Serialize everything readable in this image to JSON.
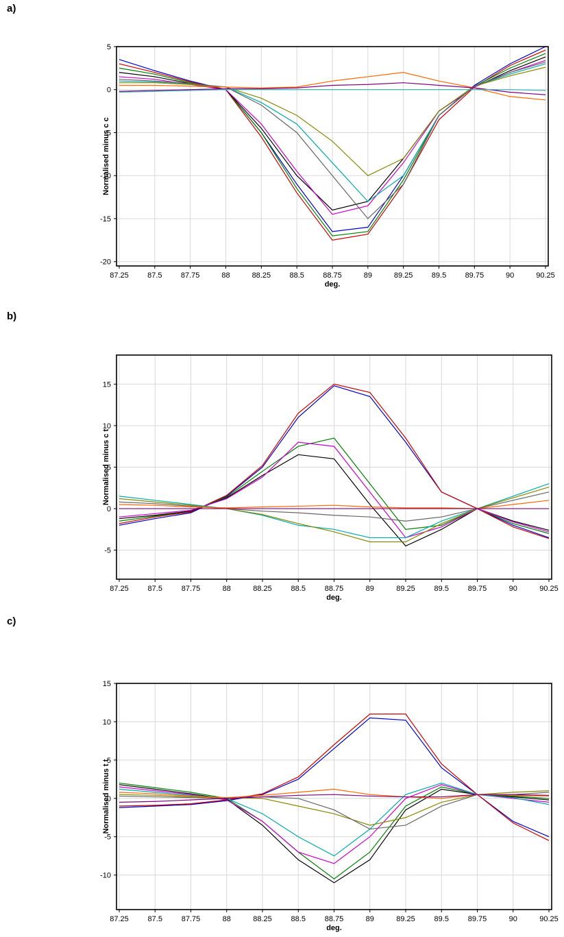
{
  "panels": [
    {
      "label": "a)"
    },
    {
      "label": "b)"
    },
    {
      "label": "c)"
    }
  ],
  "series_colors": [
    "#0000cc",
    "#cc0000",
    "#008000",
    "#000000",
    "#cc00cc",
    "#00aaaa",
    "#888800",
    "#666666",
    "#ff6600",
    "#7f007f",
    "#3cb4b4",
    "#b04040",
    "#404080",
    "#a0a000",
    "#d060d0"
  ],
  "chart_data": [
    {
      "type": "line",
      "xlabel": "deg.",
      "ylabel": "Normalised minus c c",
      "xlim": [
        87.25,
        90.25
      ],
      "ylim": [
        -20.5,
        5
      ],
      "x_ticks": [
        "87.25",
        "87.5",
        "87.75",
        "88",
        "88.25",
        "88.5",
        "88.75",
        "89",
        "89.25",
        "89.5",
        "89.75",
        "90",
        "90.25"
      ],
      "y_ticks": [
        "5",
        "0",
        "-5",
        "-10",
        "-15",
        "-20"
      ],
      "grid": true,
      "x": [
        87.25,
        87.5,
        87.75,
        88,
        88.25,
        88.5,
        88.75,
        89,
        89.25,
        89.5,
        89.75,
        90,
        90.25
      ],
      "series": [
        {
          "values": [
            3.5,
            2.2,
            1.0,
            0,
            -5,
            -11,
            -16.5,
            -16,
            -10,
            -3,
            0.5,
            3,
            5
          ]
        },
        {
          "values": [
            3.0,
            2.0,
            0.9,
            0,
            -5.5,
            -12,
            -17.5,
            -16.8,
            -11,
            -3.5,
            0.3,
            2.8,
            4.6
          ]
        },
        {
          "values": [
            2.5,
            1.8,
            0.8,
            0,
            -5,
            -11.5,
            -17,
            -16.5,
            -10.5,
            -3,
            0.4,
            2.5,
            4.2
          ]
        },
        {
          "values": [
            2.0,
            1.5,
            0.7,
            0,
            -4.5,
            -10,
            -14,
            -13,
            -8,
            -2.5,
            0.3,
            2.2,
            3.8
          ]
        },
        {
          "values": [
            1.5,
            1.2,
            0.6,
            0,
            -4,
            -9.5,
            -14.5,
            -13.5,
            -8.5,
            -2.5,
            0.3,
            2.0,
            3.4
          ]
        },
        {
          "values": [
            1.0,
            0.9,
            0.6,
            0.3,
            -1.5,
            -4,
            -8.5,
            -13,
            -10,
            -3,
            0.4,
            1.8,
            3.0
          ]
        },
        {
          "values": [
            0.8,
            0.8,
            0.6,
            0.3,
            -1,
            -3,
            -6,
            -10,
            -8,
            -2.5,
            0.4,
            1.6,
            2.6
          ]
        },
        {
          "values": [
            1.2,
            1.0,
            0.7,
            0.3,
            -1.8,
            -5,
            -10,
            -15,
            -11,
            -3,
            0.4,
            2.0,
            3.2
          ]
        },
        {
          "values": [
            0.5,
            0.5,
            0.4,
            0.3,
            0.2,
            0.3,
            1.0,
            1.5,
            2.0,
            1.0,
            0.2,
            -0.8,
            -1.2
          ]
        },
        {
          "values": [
            -0.2,
            -0.1,
            0,
            0.1,
            0.1,
            0.2,
            0.5,
            0.6,
            0.8,
            0.5,
            0.2,
            -0.3,
            -0.6
          ]
        },
        {
          "values": [
            -0.3,
            -0.2,
            -0.1,
            0,
            0,
            0,
            0,
            0,
            0,
            0,
            0,
            0,
            -0.1
          ]
        }
      ]
    },
    {
      "type": "line",
      "xlabel": "deg.",
      "ylabel": "Normalised minus c t",
      "xlim": [
        87.25,
        90.25
      ],
      "ylim": [
        -8.5,
        18.5
      ],
      "x_ticks": [
        "87.25",
        "87.5",
        "87.75",
        "88",
        "88.25",
        "88.5",
        "88.75",
        "89",
        "89.25",
        "89.5",
        "89.75",
        "90",
        "90.25"
      ],
      "y_ticks": [
        "15",
        "10",
        "5",
        "0",
        "-5"
      ],
      "grid": true,
      "x": [
        87.25,
        87.5,
        87.75,
        88,
        88.25,
        88.5,
        88.75,
        89,
        89.25,
        89.5,
        89.75,
        90,
        90.25
      ],
      "series": [
        {
          "values": [
            -2,
            -1.2,
            -0.5,
            1.5,
            5,
            11,
            14.8,
            13.5,
            8,
            2,
            0,
            -2,
            -3.5
          ]
        },
        {
          "values": [
            -1.8,
            -1.0,
            -0.4,
            1.6,
            5.2,
            11.5,
            15,
            14,
            8.5,
            2,
            0,
            -2.2,
            -3.6
          ]
        },
        {
          "values": [
            -1.5,
            -0.9,
            -0.3,
            1.4,
            4.5,
            7.5,
            8.5,
            3,
            -2.5,
            -2,
            0,
            -1.8,
            -3.0
          ]
        },
        {
          "values": [
            -1.2,
            -0.8,
            -0.3,
            1.3,
            4,
            6.5,
            6,
            0.5,
            -4.5,
            -2.5,
            0,
            -1.5,
            -2.6
          ]
        },
        {
          "values": [
            -1.0,
            -0.6,
            -0.2,
            1.2,
            3.8,
            8,
            7.5,
            2,
            -3.5,
            -2.2,
            0,
            -1.6,
            -2.8
          ]
        },
        {
          "values": [
            1.5,
            1.0,
            0.5,
            0,
            -0.8,
            -2,
            -2.5,
            -3.5,
            -3.5,
            -1.5,
            0,
            1.5,
            3
          ]
        },
        {
          "values": [
            1.2,
            0.8,
            0.4,
            0,
            -0.7,
            -1.8,
            -2.8,
            -4,
            -4,
            -1.8,
            0,
            1.3,
            2.6
          ]
        },
        {
          "values": [
            0.8,
            0.6,
            0.3,
            0,
            -0.3,
            -0.5,
            -0.8,
            -1,
            -1.5,
            -1.0,
            0,
            1.0,
            2.0
          ]
        },
        {
          "values": [
            0.5,
            0.4,
            0.2,
            0.1,
            0.2,
            0.3,
            0.4,
            0.2,
            0.1,
            0.1,
            0,
            0.5,
            1.0
          ]
        },
        {
          "values": [
            0,
            0,
            0,
            0,
            0,
            0,
            0,
            0,
            0,
            0,
            0,
            0,
            0
          ]
        }
      ]
    },
    {
      "type": "line",
      "xlabel": "deg.",
      "ylabel": "Normalised minus t t",
      "xlim": [
        87.25,
        90.25
      ],
      "ylim": [
        -14.5,
        15
      ],
      "x_ticks": [
        "87.25",
        "87.5",
        "87.75",
        "88",
        "88.25",
        "88.5",
        "88.75",
        "89",
        "89.25",
        "89.5",
        "89.75",
        "90",
        "90.25"
      ],
      "y_ticks": [
        "15",
        "10",
        "5",
        "0",
        "-5",
        "-10"
      ],
      "grid": true,
      "x": [
        87.25,
        87.5,
        87.75,
        88,
        88.25,
        88.5,
        88.75,
        89,
        89.25,
        89.5,
        89.75,
        90,
        90.25
      ],
      "series": [
        {
          "values": [
            -1.2,
            -1.0,
            -0.8,
            -0.3,
            0.5,
            2.5,
            6.5,
            10.5,
            10.2,
            4,
            0.5,
            -3,
            -5
          ]
        },
        {
          "values": [
            -1.0,
            -0.9,
            -0.7,
            -0.2,
            0.6,
            2.8,
            7,
            11,
            11,
            4.5,
            0.5,
            -3.2,
            -5.5
          ]
        },
        {
          "values": [
            2.0,
            1.4,
            0.8,
            0,
            -3,
            -7,
            -10.5,
            -7,
            -1,
            1.5,
            0.5,
            0.3,
            0
          ]
        },
        {
          "values": [
            1.8,
            1.2,
            0.6,
            -0.1,
            -3.5,
            -8,
            -11,
            -8,
            -1.5,
            1.2,
            0.5,
            0.2,
            -0.2
          ]
        },
        {
          "values": [
            1.5,
            1.0,
            0.5,
            -0.2,
            -3,
            -7,
            -8.5,
            -5,
            0,
            1.8,
            0.5,
            0,
            -0.5
          ]
        },
        {
          "values": [
            1.2,
            0.8,
            0.4,
            0,
            -2,
            -5,
            -7.5,
            -4,
            0.5,
            2,
            0.5,
            0.1,
            -0.8
          ]
        },
        {
          "values": [
            0.5,
            0.4,
            0.2,
            0.1,
            0,
            -1,
            -2,
            -3.5,
            -2.5,
            -0.5,
            0.5,
            0.8,
            1.0
          ]
        },
        {
          "values": [
            0.3,
            0.2,
            0.1,
            0,
            0.2,
            0,
            -1.5,
            -4,
            -3.5,
            -1.0,
            0.5,
            0.5,
            0.8
          ]
        },
        {
          "values": [
            0.8,
            0.6,
            0.3,
            0.1,
            0.4,
            0.8,
            1.2,
            0.5,
            0.2,
            0.0,
            0.5,
            0.4,
            0.3
          ]
        },
        {
          "values": [
            -0.5,
            -0.4,
            -0.2,
            0,
            0.2,
            0.4,
            0.5,
            0.3,
            0.2,
            0.2,
            0.5,
            0.5,
            0.4
          ]
        }
      ]
    }
  ]
}
